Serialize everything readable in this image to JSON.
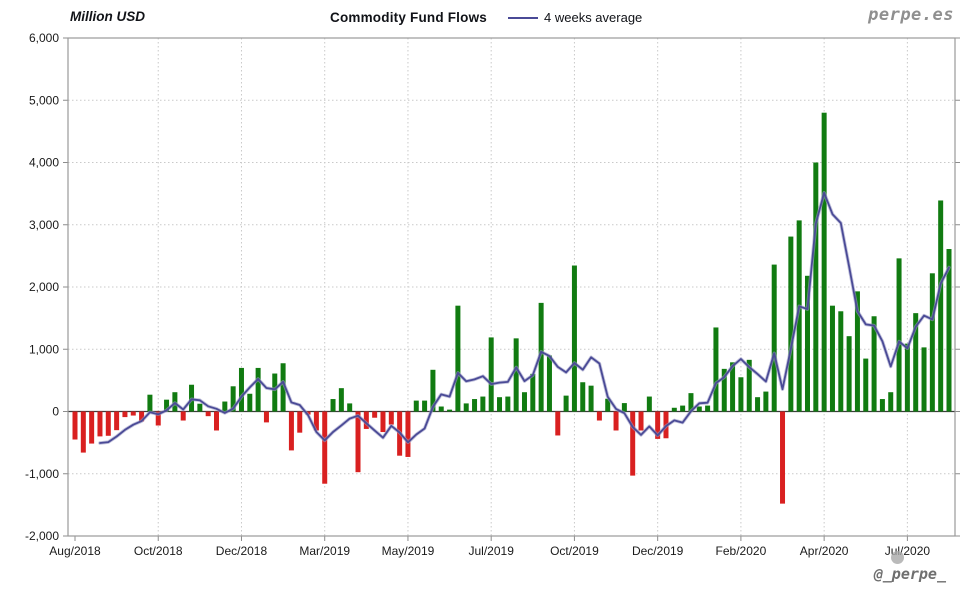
{
  "header": {
    "unit_label": "Million USD",
    "title": "Commodity Fund Flows",
    "legend": {
      "label": "4 weeks average",
      "color": "#4a4a96"
    },
    "watermark": "perpe.es"
  },
  "footer": {
    "handle": "@_perpe_"
  },
  "chart_data": {
    "type": "bar",
    "title": "Commodity Fund Flows",
    "unit": "Million USD",
    "frequency": "weekly",
    "bar_color_positive": "#117b11",
    "bar_color_negative": "#d92020",
    "line": {
      "name": "4 weeks average",
      "window": 4,
      "color": "#4a4a96"
    },
    "ylim": [
      -2000,
      6000
    ],
    "grid": true,
    "legend_position": "top",
    "yticks": [
      {
        "value": 6000,
        "label": "6,000"
      },
      {
        "value": 5000,
        "label": "5,000"
      },
      {
        "value": 4000,
        "label": "4,000"
      },
      {
        "value": 3000,
        "label": "3,000"
      },
      {
        "value": 2000,
        "label": "2,000"
      },
      {
        "value": 1000,
        "label": "1,000"
      },
      {
        "value": 0,
        "label": "0"
      },
      {
        "value": -1000,
        "label": "-1,000"
      },
      {
        "value": -2000,
        "label": "-2,000"
      }
    ],
    "xticks": [
      {
        "index": 0,
        "label": "Aug/2018"
      },
      {
        "index": 10,
        "label": "Oct/2018"
      },
      {
        "index": 20,
        "label": "Dec/2018"
      },
      {
        "index": 30,
        "label": "Mar/2019"
      },
      {
        "index": 40,
        "label": "May/2019"
      },
      {
        "index": 50,
        "label": "Jul/2019"
      },
      {
        "index": 60,
        "label": "Oct/2019"
      },
      {
        "index": 70,
        "label": "Dec/2019"
      },
      {
        "index": 80,
        "label": "Feb/2020"
      },
      {
        "index": 90,
        "label": "Apr/2020"
      },
      {
        "index": 100,
        "label": "Jul/2020"
      }
    ],
    "values": [
      -450,
      -660,
      -515,
      -400,
      -390,
      -300,
      -90,
      -65,
      -160,
      270,
      -225,
      190,
      310,
      -145,
      430,
      125,
      -75,
      -305,
      160,
      405,
      700,
      285,
      700,
      -175,
      610,
      775,
      -625,
      -340,
      -50,
      -305,
      -1160,
      200,
      375,
      130,
      -975,
      -280,
      -100,
      -330,
      -210,
      -710,
      -730,
      175,
      175,
      670,
      80,
      30,
      1700,
      130,
      200,
      240,
      1190,
      230,
      240,
      1175,
      310,
      605,
      1745,
      900,
      -385,
      255,
      2345,
      470,
      415,
      -145,
      205,
      -305,
      135,
      -1030,
      -305,
      240,
      -440,
      -430,
      60,
      95,
      295,
      80,
      95,
      1350,
      685,
      790,
      550,
      830,
      230,
      320,
      2360,
      -1480,
      2810,
      3070,
      2180,
      4000,
      4800,
      1700,
      1610,
      1210,
      1930,
      850,
      1530,
      200,
      310,
      2460,
      1090,
      1580,
      1030,
      2220,
      3390,
      2610
    ]
  }
}
